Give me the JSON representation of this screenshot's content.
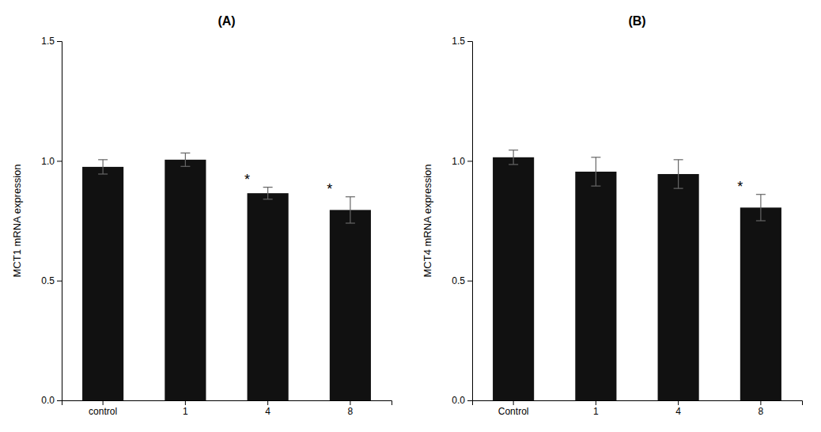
{
  "chart_data": [
    {
      "type": "bar",
      "title": "(A)",
      "categories": [
        "control",
        "1",
        "4",
        "8"
      ],
      "values": [
        0.975,
        1.005,
        0.865,
        0.795
      ],
      "errors": [
        0.03,
        0.028,
        0.025,
        0.055
      ],
      "y_label": "MCT1 mRNA expression",
      "annotations": [
        {
          "text": "*",
          "category": "4"
        },
        {
          "text": "*",
          "category": "8"
        }
      ],
      "color": "#111111",
      "ylim": [
        0.0,
        1.5
      ],
      "yticks": [
        {
          "value": 0.0,
          "label": "0.0"
        },
        0.5,
        {
          "value": 1.0,
          "label": "1.0"
        },
        1.5
      ],
      "grid": false
    },
    {
      "type": "bar",
      "title": "(B)",
      "categories": [
        "Control",
        "1",
        "4",
        "8"
      ],
      "values": [
        1.015,
        0.955,
        0.945,
        0.805
      ],
      "errors": [
        0.03,
        0.06,
        0.06,
        0.055
      ],
      "y_label": "MCT4 mRNA expression",
      "annotations": [
        {
          "text": "*",
          "category": "8"
        }
      ],
      "color": "#111111",
      "ylim": [
        0.0,
        1.5
      ],
      "yticks": [
        {
          "value": 0.0,
          "label": "0.0"
        },
        0.5,
        {
          "value": 1.0,
          "label": "1.0"
        },
        1.5
      ],
      "grid": false
    }
  ]
}
